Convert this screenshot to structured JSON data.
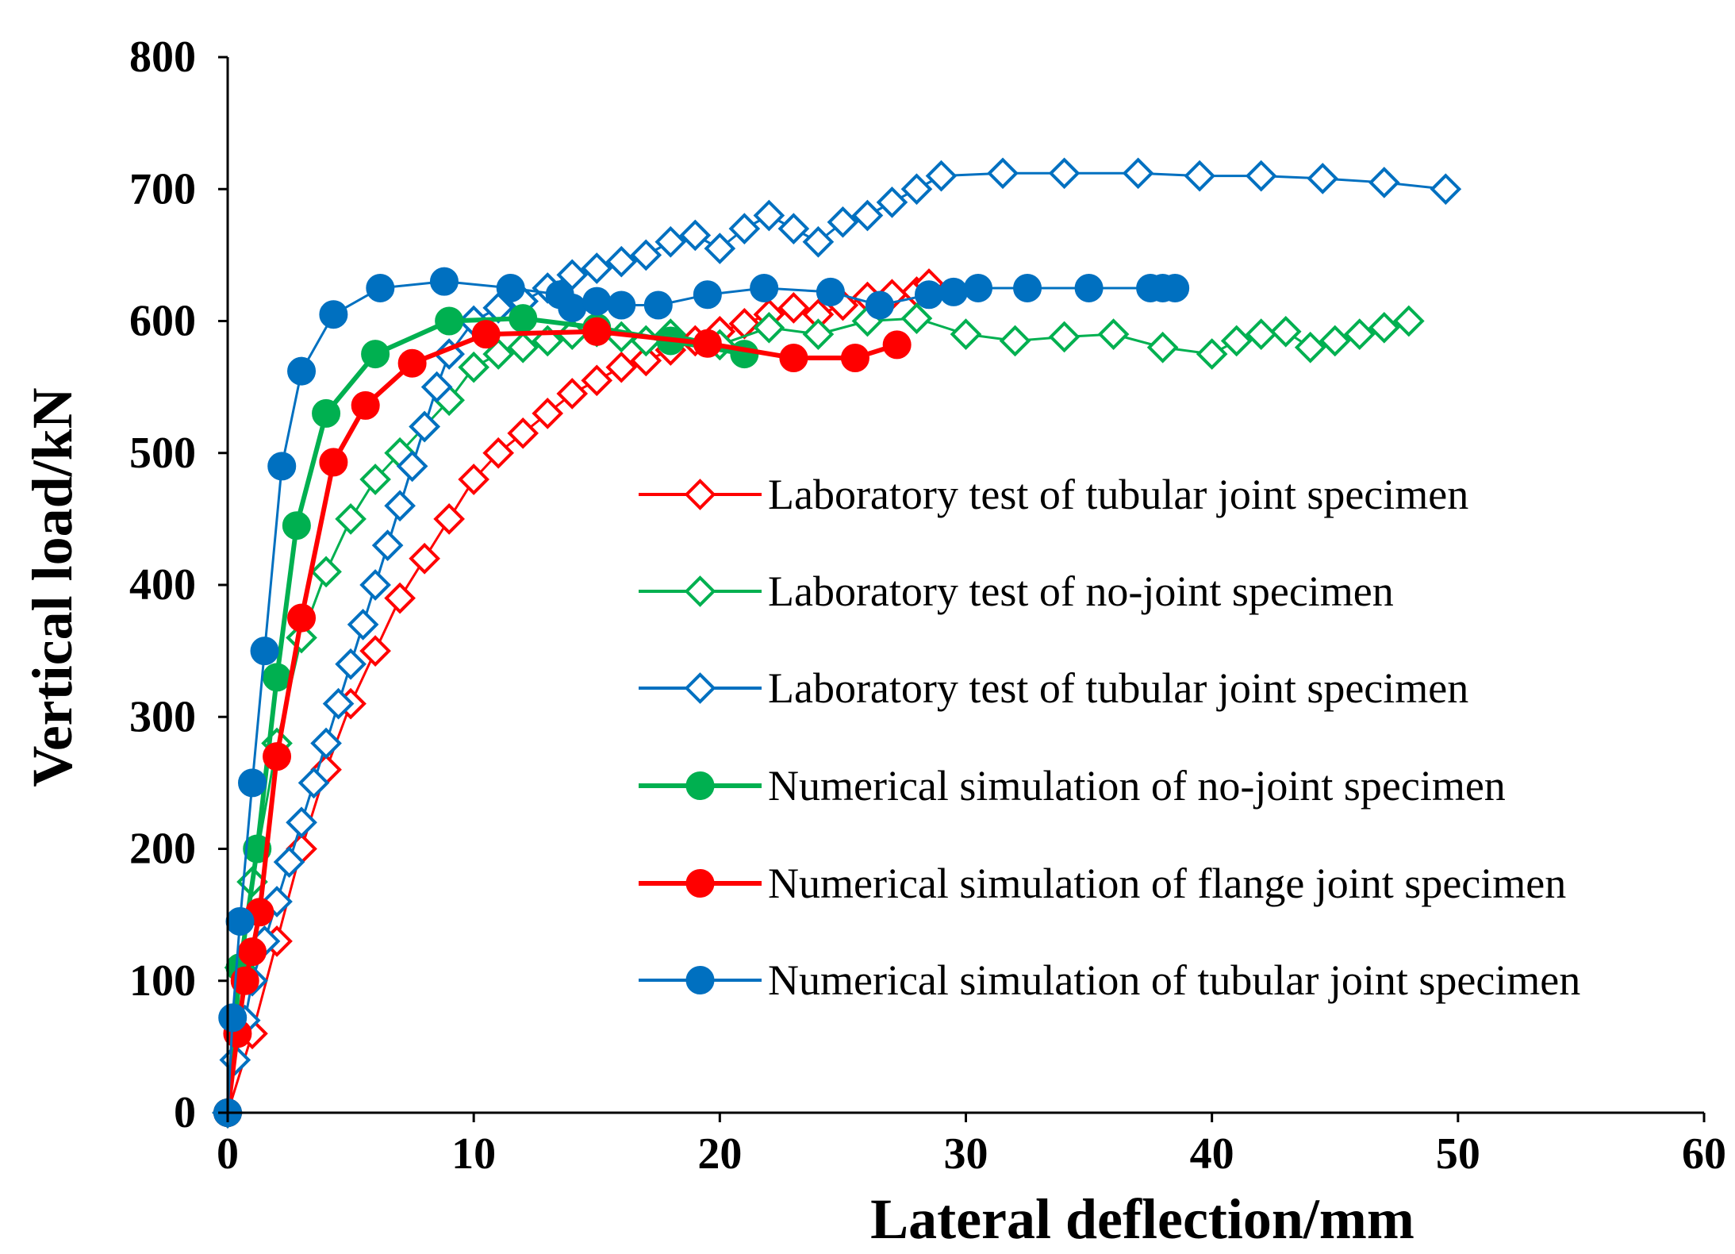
{
  "chart_data": {
    "type": "line",
    "title": "",
    "xlabel": "Lateral deflection/mm",
    "ylabel": "Vertical load/kN",
    "xlim": [
      0,
      60
    ],
    "ylim": [
      0,
      800
    ],
    "xticks": [
      0,
      10,
      20,
      30,
      40,
      50,
      60
    ],
    "yticks": [
      0,
      100,
      200,
      300,
      400,
      500,
      600,
      700,
      800
    ],
    "grid": false,
    "legend_position": "center-right",
    "series": [
      {
        "name": "Laboratory test of tubular joint specimen",
        "color": "#ff0000",
        "marker": "open-diamond",
        "line": "thin",
        "x": [
          0,
          1,
          2,
          3,
          4,
          5,
          6,
          7,
          8,
          9,
          10,
          11,
          12,
          13,
          14,
          15,
          16,
          17,
          18,
          19,
          20,
          21,
          22,
          23,
          24,
          25,
          26,
          27,
          28,
          28.5
        ],
        "y": [
          0,
          60,
          130,
          200,
          260,
          310,
          350,
          390,
          420,
          450,
          480,
          500,
          515,
          530,
          545,
          555,
          565,
          570,
          578,
          585,
          592,
          598,
          605,
          610,
          605,
          612,
          618,
          620,
          622,
          628
        ]
      },
      {
        "name": "Laboratory test of no-joint specimen",
        "color": "#00b050",
        "marker": "open-diamond",
        "line": "thin",
        "x": [
          0,
          0.5,
          1,
          2,
          3,
          4,
          5,
          6,
          7,
          8,
          9,
          10,
          11,
          12,
          13,
          14,
          15,
          16,
          17,
          18,
          20,
          22,
          24,
          26,
          28,
          30,
          32,
          34,
          36,
          38,
          40,
          41,
          42,
          43,
          44,
          45,
          46,
          47,
          48
        ],
        "y": [
          0,
          110,
          175,
          280,
          360,
          410,
          450,
          480,
          500,
          520,
          540,
          565,
          575,
          580,
          585,
          590,
          592,
          588,
          585,
          590,
          582,
          595,
          590,
          600,
          602,
          590,
          585,
          588,
          590,
          580,
          575,
          585,
          590,
          592,
          580,
          585,
          590,
          595,
          600
        ]
      },
      {
        "name": "Laboratory test of tubular joint specimen",
        "color": "#0070c0",
        "marker": "open-diamond",
        "line": "thin",
        "x": [
          0,
          0.3,
          0.7,
          1,
          1.5,
          2,
          2.5,
          3,
          3.5,
          4,
          4.5,
          5,
          5.5,
          6,
          6.5,
          7,
          7.5,
          8,
          8.5,
          9,
          10,
          11,
          12,
          13,
          14,
          15,
          16,
          17,
          18,
          19,
          20,
          21,
          22,
          23,
          24,
          25,
          26,
          27,
          28,
          29,
          31.5,
          34,
          37,
          39.5,
          42,
          44.5,
          47,
          49.5
        ],
        "y": [
          0,
          40,
          70,
          100,
          130,
          160,
          190,
          220,
          250,
          280,
          310,
          340,
          370,
          400,
          430,
          460,
          490,
          520,
          550,
          575,
          600,
          610,
          615,
          625,
          635,
          640,
          645,
          650,
          660,
          665,
          655,
          670,
          680,
          670,
          660,
          675,
          680,
          690,
          700,
          710,
          712,
          712,
          712,
          710,
          710,
          708,
          705,
          700
        ]
      },
      {
        "name": "Numerical simulation of no-joint specimen",
        "color": "#00b050",
        "marker": "filled-circle",
        "line": "thick",
        "x": [
          0,
          0.5,
          1.2,
          2,
          2.8,
          4,
          6,
          9,
          12,
          15,
          18,
          21
        ],
        "y": [
          0,
          110,
          200,
          330,
          445,
          530,
          575,
          600,
          602,
          595,
          585,
          575
        ]
      },
      {
        "name": "Numerical simulation of flange joint specimen",
        "color": "#ff0000",
        "marker": "filled-circle",
        "line": "thick",
        "x": [
          0,
          0.4,
          0.7,
          1,
          1.3,
          2,
          3,
          4.3,
          5.6,
          7.5,
          10.5,
          15,
          19.5,
          23,
          25.5,
          27.2
        ],
        "y": [
          0,
          60,
          100,
          122,
          152,
          270,
          375,
          493,
          536,
          568,
          590,
          592,
          583,
          572,
          572,
          582
        ]
      },
      {
        "name": "Numerical simulation of tubular joint specimen",
        "color": "#0070c0",
        "marker": "filled-circle",
        "line": "thin",
        "x": [
          0,
          0.2,
          0.5,
          1,
          1.5,
          2.2,
          3,
          4.3,
          6.2,
          8.8,
          11.5,
          13.5,
          14,
          15,
          16,
          17.5,
          19.5,
          21.8,
          24.5,
          26.5,
          28.5,
          29.5,
          30.5,
          32.5,
          35,
          37.5,
          38,
          38.5
        ],
        "y": [
          0,
          72,
          145,
          250,
          350,
          490,
          562,
          605,
          625,
          630,
          625,
          620,
          610,
          615,
          612,
          612,
          620,
          625,
          622,
          612,
          620,
          622,
          625,
          625,
          625,
          625,
          625,
          625
        ]
      }
    ]
  }
}
